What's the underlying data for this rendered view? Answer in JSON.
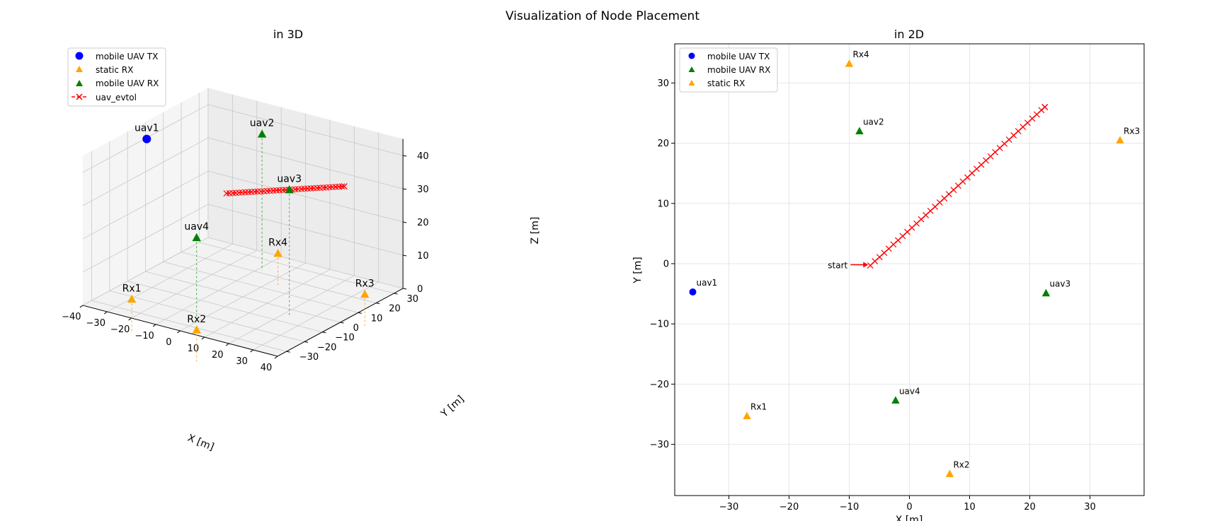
{
  "figure": {
    "title": "Visualization of Node Placement"
  },
  "chart_data": [
    {
      "panel": "3d",
      "type": "scatter",
      "title": "in 3D",
      "xlabel": "X [m]",
      "ylabel": "Y [m]",
      "zlabel": "Z [m]",
      "xlim": [
        -40,
        40
      ],
      "ylim": [
        -35,
        35
      ],
      "zlim": [
        0,
        45
      ],
      "xticks": [
        -40,
        -30,
        -20,
        -10,
        0,
        10,
        20,
        30,
        40
      ],
      "yticks": [
        -30,
        -20,
        -10,
        0,
        10,
        20,
        30
      ],
      "zticks": [
        0,
        10,
        20,
        30,
        40
      ],
      "grid": true,
      "legend": {
        "position": "top-left",
        "entries": [
          {
            "label": "mobile UAV TX",
            "marker": "circle",
            "color": "#0000ff"
          },
          {
            "label": "static RX",
            "marker": "triangle",
            "color": "#ffa500"
          },
          {
            "label": "mobile UAV RX",
            "marker": "triangle",
            "color": "#008000"
          },
          {
            "label": "uav_evtol",
            "marker": "x-line",
            "color": "#ff0000"
          }
        ]
      },
      "points": [
        {
          "label": "uav1",
          "x": -36,
          "y": -4.7,
          "z": 42,
          "group": "tx"
        },
        {
          "label": "uav2",
          "x": -8.3,
          "y": 22,
          "z": 41,
          "group": "uav_rx"
        },
        {
          "label": "uav3",
          "x": 22.7,
          "y": -4.9,
          "z": 38,
          "group": "uav_rx"
        },
        {
          "label": "uav4",
          "x": -2.3,
          "y": -22.7,
          "z": 24,
          "group": "uav_rx"
        },
        {
          "label": "Rx1",
          "x": -27,
          "y": -25.3,
          "z": 1.5,
          "group": "static_rx"
        },
        {
          "label": "Rx2",
          "x": 6.7,
          "y": -34.9,
          "z": 1.5,
          "group": "static_rx"
        },
        {
          "label": "Rx3",
          "x": 35,
          "y": 20.5,
          "z": 1.5,
          "group": "static_rx"
        },
        {
          "label": "Rx4",
          "x": -10,
          "y": 33.2,
          "z": 1.5,
          "group": "static_rx"
        }
      ],
      "trajectory": {
        "name": "uav_evtol",
        "start": [
          -6.5,
          -0.3
        ],
        "end": [
          22.5,
          26
        ],
        "z": 30
      }
    },
    {
      "panel": "2d",
      "type": "scatter",
      "title": "in 2D",
      "xlabel": "X [m]",
      "ylabel": "Y [m]",
      "xlim": [
        -39,
        39
      ],
      "ylim": [
        -38.5,
        36.5
      ],
      "xticks": [
        -30,
        -20,
        -10,
        0,
        10,
        20,
        30
      ],
      "yticks": [
        -30,
        -20,
        -10,
        0,
        10,
        20,
        30
      ],
      "grid": true,
      "legend": {
        "position": "top-left",
        "entries": [
          {
            "label": "mobile UAV TX",
            "marker": "circle",
            "color": "#0000ff"
          },
          {
            "label": "mobile UAV RX",
            "marker": "triangle",
            "color": "#008000"
          },
          {
            "label": "static RX",
            "marker": "triangle",
            "color": "#ffa500"
          }
        ]
      },
      "points": [
        {
          "label": "uav1",
          "x": -36,
          "y": -4.7,
          "group": "tx"
        },
        {
          "label": "uav2",
          "x": -8.3,
          "y": 22,
          "group": "uav_rx"
        },
        {
          "label": "uav3",
          "x": 22.7,
          "y": -4.9,
          "group": "uav_rx"
        },
        {
          "label": "uav4",
          "x": -2.3,
          "y": -22.7,
          "group": "uav_rx"
        },
        {
          "label": "Rx1",
          "x": -27,
          "y": -25.3,
          "group": "static_rx"
        },
        {
          "label": "Rx2",
          "x": 6.7,
          "y": -34.9,
          "group": "static_rx"
        },
        {
          "label": "Rx3",
          "x": 35,
          "y": 20.5,
          "group": "static_rx"
        },
        {
          "label": "Rx4",
          "x": -10,
          "y": 33.2,
          "group": "static_rx"
        }
      ],
      "trajectory": {
        "name": "uav_evtol",
        "start": [
          -6.5,
          -0.3
        ],
        "end": [
          22.5,
          26
        ]
      },
      "annotation": {
        "text": "start",
        "x": -6.5,
        "y": -0.3
      }
    }
  ]
}
